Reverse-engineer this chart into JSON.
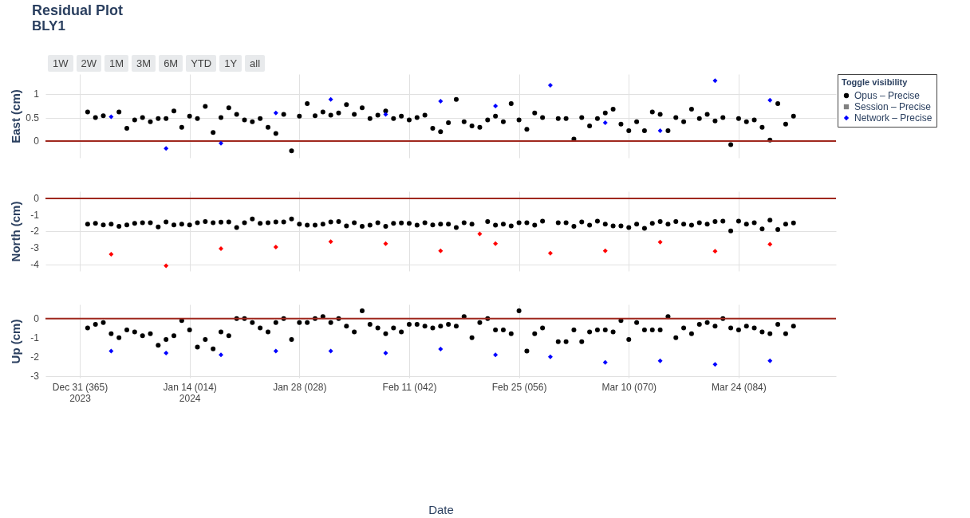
{
  "chart_data": [
    {
      "type": "scatter",
      "title": "Residual Plot",
      "subtitle": "BLY1",
      "ylabel": "East (cm)",
      "legend_title": "Toggle visibility",
      "legend": "top right",
      "grid": true,
      "tick_labels": "y",
      "annotations": [
        "1W",
        "2W",
        "1M",
        "3M",
        "6M",
        "YTD",
        "1Y",
        "all"
      ],
      "xlim": [
        "2023-12-26T15:00",
        "2024-04-05T10:00"
      ],
      "xticks": [
        {
          "value": "2023-12-31",
          "label": null
        },
        {
          "value": "2024-01-14",
          "label": null
        },
        {
          "value": "2024-01-28",
          "label": null
        },
        {
          "value": "2024-02-11",
          "label": null
        },
        {
          "value": "2024-02-25",
          "label": null
        },
        {
          "value": "2024-03-10",
          "label": null
        },
        {
          "value": "2024-03-24",
          "label": null
        }
      ],
      "ylim": [
        -0.36,
        1.43
      ],
      "yticks": [
        0,
        0.5,
        1
      ],
      "ref_lines": [
        {
          "axis": "y",
          "value": 0,
          "color": "#a0281e"
        }
      ],
      "x": [
        "2024-01-01",
        "2024-01-02",
        "2024-01-03",
        "2024-01-04",
        "2024-01-05",
        "2024-01-06",
        "2024-01-07",
        "2024-01-08",
        "2024-01-09",
        "2024-01-10",
        "2024-01-11",
        "2024-01-12",
        "2024-01-13",
        "2024-01-14",
        "2024-01-15",
        "2024-01-16",
        "2024-01-17",
        "2024-01-18",
        "2024-01-19",
        "2024-01-20",
        "2024-01-21",
        "2024-01-22",
        "2024-01-23",
        "2024-01-24",
        "2024-01-25",
        "2024-01-26",
        "2024-01-27",
        "2024-01-28",
        "2024-01-29",
        "2024-01-30",
        "2024-01-31",
        "2024-02-01",
        "2024-02-02",
        "2024-02-03",
        "2024-02-04",
        "2024-02-05",
        "2024-02-06",
        "2024-02-07",
        "2024-02-08",
        "2024-02-09",
        "2024-02-10",
        "2024-02-11",
        "2024-02-12",
        "2024-02-13",
        "2024-02-14",
        "2024-02-15",
        "2024-02-16",
        "2024-02-17",
        "2024-02-18",
        "2024-02-19",
        "2024-02-20",
        "2024-02-21",
        "2024-02-22",
        "2024-02-23",
        "2024-02-24",
        "2024-02-25",
        "2024-02-26",
        "2024-02-27",
        "2024-02-28",
        "2024-02-29",
        "2024-03-01",
        "2024-03-02",
        "2024-03-03",
        "2024-03-04",
        "2024-03-05",
        "2024-03-06",
        "2024-03-07",
        "2024-03-08",
        "2024-03-09",
        "2024-03-10",
        "2024-03-11",
        "2024-03-12",
        "2024-03-13",
        "2024-03-14",
        "2024-03-15",
        "2024-03-16",
        "2024-03-17",
        "2024-03-18",
        "2024-03-19",
        "2024-03-20",
        "2024-03-21",
        "2024-03-22",
        "2024-03-23",
        "2024-03-24",
        "2024-03-25",
        "2024-03-26",
        "2024-03-27",
        "2024-03-28",
        "2024-03-29",
        "2024-03-30",
        "2024-03-31"
      ],
      "series": [
        {
          "name": "Opus – Precise",
          "color": "#000000",
          "marker": "circle",
          "values": [
            0.62,
            0.5,
            0.54,
            null,
            0.62,
            0.27,
            0.45,
            0.5,
            0.41,
            0.48,
            0.48,
            0.64,
            0.29,
            0.53,
            0.48,
            0.74,
            0.18,
            0.5,
            0.71,
            0.57,
            0.45,
            0.41,
            0.48,
            0.29,
            0.16,
            0.57,
            -0.21,
            0.53,
            0.8,
            0.54,
            0.62,
            0.55,
            0.6,
            0.78,
            0.57,
            0.71,
            0.48,
            0.55,
            0.64,
            0.48,
            0.53,
            0.45,
            0.5,
            0.55,
            0.27,
            0.2,
            0.39,
            0.89,
            0.41,
            0.32,
            0.29,
            0.45,
            0.53,
            0.41,
            0.8,
            0.45,
            0.25,
            0.6,
            0.5,
            null,
            0.48,
            0.48,
            0.04,
            0.5,
            0.32,
            0.48,
            0.6,
            0.68,
            0.36,
            0.22,
            0.41,
            0.22,
            0.62,
            0.57,
            0.22,
            0.5,
            0.41,
            0.68,
            0.48,
            0.57,
            0.43,
            0.5,
            -0.08,
            0.48,
            0.41,
            0.45,
            0.29,
            0.02,
            0.8,
            0.36,
            0.53
          ]
        },
        {
          "name": "Session – Precise",
          "color": "#808080",
          "marker": "square",
          "values": [
            null,
            null,
            null,
            null,
            null,
            null,
            null,
            null,
            null,
            null,
            null,
            null,
            null,
            null,
            null,
            null,
            null,
            null,
            null,
            null,
            null,
            null,
            null,
            null,
            null,
            null,
            null,
            null,
            null,
            null,
            null,
            null,
            null,
            null,
            null,
            null,
            null,
            null,
            null,
            null,
            null,
            null,
            null,
            null,
            null,
            null,
            null,
            null,
            null,
            null,
            null,
            null,
            null,
            null,
            null,
            null,
            null,
            null,
            null,
            null,
            null,
            null,
            null,
            null,
            null,
            null,
            null,
            null,
            null,
            null,
            null,
            null,
            null,
            null,
            null,
            null,
            null,
            null,
            null,
            null,
            null,
            null,
            null,
            null,
            null,
            null,
            null,
            null,
            null,
            null,
            null
          ]
        },
        {
          "name": "Network – Precise",
          "color": "#0000ff",
          "marker": "diamond",
          "x": [
            "2024-01-04",
            "2024-01-11",
            "2024-01-18",
            "2024-01-25",
            "2024-02-01",
            "2024-02-08",
            "2024-02-15",
            "2024-02-22",
            "2024-02-29",
            "2024-03-07",
            "2024-03-14",
            "2024-03-21",
            "2024-03-28"
          ],
          "values": [
            0.52,
            -0.16,
            -0.05,
            0.6,
            0.89,
            0.57,
            0.85,
            0.75,
            1.19,
            0.39,
            0.22,
            1.29,
            0.87
          ]
        }
      ]
    },
    {
      "type": "scatter",
      "ylabel": "North (cm)",
      "grid": true,
      "tick_labels": "y",
      "xlim": [
        "2023-12-26T15:00",
        "2024-04-05T10:00"
      ],
      "xticks": [
        {
          "value": "2023-12-31",
          "label": null
        },
        {
          "value": "2024-01-14",
          "label": null
        },
        {
          "value": "2024-01-28",
          "label": null
        },
        {
          "value": "2024-02-11",
          "label": null
        },
        {
          "value": "2024-02-25",
          "label": null
        },
        {
          "value": "2024-03-10",
          "label": null
        },
        {
          "value": "2024-03-24",
          "label": null
        }
      ],
      "ylim": [
        -4.4,
        0.43
      ],
      "yticks": [
        0,
        -1,
        -2,
        -3,
        -4
      ],
      "ref_lines": [
        {
          "axis": "y",
          "value": 0,
          "color": "#a0281e"
        }
      ],
      "x": [
        "2024-01-01",
        "2024-01-02",
        "2024-01-03",
        "2024-01-04",
        "2024-01-05",
        "2024-01-06",
        "2024-01-07",
        "2024-01-08",
        "2024-01-09",
        "2024-01-10",
        "2024-01-11",
        "2024-01-12",
        "2024-01-13",
        "2024-01-14",
        "2024-01-15",
        "2024-01-16",
        "2024-01-17",
        "2024-01-18",
        "2024-01-19",
        "2024-01-20",
        "2024-01-21",
        "2024-01-22",
        "2024-01-23",
        "2024-01-24",
        "2024-01-25",
        "2024-01-26",
        "2024-01-27",
        "2024-01-28",
        "2024-01-29",
        "2024-01-30",
        "2024-01-31",
        "2024-02-01",
        "2024-02-02",
        "2024-02-03",
        "2024-02-04",
        "2024-02-05",
        "2024-02-06",
        "2024-02-07",
        "2024-02-08",
        "2024-02-09",
        "2024-02-10",
        "2024-02-11",
        "2024-02-12",
        "2024-02-13",
        "2024-02-14",
        "2024-02-15",
        "2024-02-16",
        "2024-02-17",
        "2024-02-18",
        "2024-02-19",
        "2024-02-20",
        "2024-02-21",
        "2024-02-22",
        "2024-02-23",
        "2024-02-24",
        "2024-02-25",
        "2024-02-26",
        "2024-02-27",
        "2024-02-28",
        "2024-02-29",
        "2024-03-01",
        "2024-03-02",
        "2024-03-03",
        "2024-03-04",
        "2024-03-05",
        "2024-03-06",
        "2024-03-07",
        "2024-03-08",
        "2024-03-09",
        "2024-03-10",
        "2024-03-11",
        "2024-03-12",
        "2024-03-13",
        "2024-03-14",
        "2024-03-15",
        "2024-03-16",
        "2024-03-17",
        "2024-03-18",
        "2024-03-19",
        "2024-03-20",
        "2024-03-21",
        "2024-03-22",
        "2024-03-23",
        "2024-03-24",
        "2024-03-25",
        "2024-03-26",
        "2024-03-27",
        "2024-03-28",
        "2024-03-29",
        "2024-03-30",
        "2024-03-31"
      ],
      "series": [
        {
          "color": "#000000",
          "marker": "circle",
          "values": [
            -1.56,
            -1.52,
            -1.61,
            -1.56,
            -1.69,
            -1.61,
            -1.52,
            -1.48,
            -1.48,
            -1.73,
            -1.43,
            -1.61,
            -1.56,
            -1.61,
            -1.48,
            -1.41,
            -1.48,
            -1.44,
            -1.43,
            -1.77,
            -1.48,
            -1.25,
            -1.52,
            -1.48,
            -1.43,
            -1.43,
            -1.25,
            -1.56,
            -1.62,
            -1.62,
            -1.56,
            -1.43,
            -1.41,
            -1.67,
            -1.48,
            -1.7,
            -1.62,
            -1.48,
            -1.7,
            -1.52,
            -1.49,
            -1.52,
            -1.62,
            -1.48,
            -1.61,
            -1.56,
            -1.56,
            -1.77,
            -1.48,
            -1.56,
            null,
            -1.41,
            -1.62,
            -1.56,
            -1.67,
            -1.48,
            -1.48,
            -1.62,
            -1.38,
            null,
            -1.48,
            -1.48,
            -1.69,
            -1.43,
            -1.62,
            -1.38,
            -1.56,
            -1.67,
            -1.67,
            -1.77,
            -1.56,
            -1.81,
            -1.52,
            -1.41,
            -1.56,
            -1.41,
            -1.56,
            -1.62,
            -1.48,
            -1.56,
            -1.41,
            -1.38,
            -1.97,
            -1.38,
            -1.56,
            -1.48,
            -1.85,
            -1.32,
            -1.89,
            -1.56,
            -1.49
          ]
        },
        {
          "color": "#ff0000",
          "marker": "diamond",
          "x": [
            "2024-01-04",
            "2024-01-11",
            "2024-01-18",
            "2024-01-25",
            "2024-02-01",
            "2024-02-08",
            "2024-02-15",
            "2024-02-20",
            "2024-02-22",
            "2024-02-29",
            "2024-03-07",
            "2024-03-14",
            "2024-03-21",
            "2024-03-28"
          ],
          "values": [
            -3.39,
            -4.09,
            -3.05,
            -2.95,
            -2.63,
            -2.74,
            -3.18,
            -2.15,
            -2.74,
            -3.32,
            -3.18,
            -2.65,
            -3.21,
            -2.78
          ]
        }
      ]
    },
    {
      "type": "scatter",
      "ylabel": "Up (cm)",
      "xlabel": "Date",
      "grid": true,
      "xlim": [
        "2023-12-26T15:00",
        "2024-04-05T10:00"
      ],
      "xticks": [
        {
          "value": "2023-12-31",
          "label": "Dec 31 (365)\n2023"
        },
        {
          "value": "2024-01-14",
          "label": "Jan 14 (014)\n2024"
        },
        {
          "value": "2024-01-28",
          "label": "Jan 28 (028)"
        },
        {
          "value": "2024-02-11",
          "label": "Feb 11 (042)"
        },
        {
          "value": "2024-02-25",
          "label": "Feb 25 (056)"
        },
        {
          "value": "2024-03-10",
          "label": "Mar 10 (070)"
        },
        {
          "value": "2024-03-24",
          "label": "Mar 24 (084)"
        }
      ],
      "ylim": [
        -3.1,
        0.74
      ],
      "yticks": [
        0,
        -1,
        -2,
        -3
      ],
      "ref_lines": [
        {
          "axis": "y",
          "value": 0,
          "color": "#a0281e"
        }
      ],
      "x": [
        "2024-01-01",
        "2024-01-02",
        "2024-01-03",
        "2024-01-04",
        "2024-01-05",
        "2024-01-06",
        "2024-01-07",
        "2024-01-08",
        "2024-01-09",
        "2024-01-10",
        "2024-01-11",
        "2024-01-12",
        "2024-01-13",
        "2024-01-14",
        "2024-01-15",
        "2024-01-16",
        "2024-01-17",
        "2024-01-18",
        "2024-01-19",
        "2024-01-20",
        "2024-01-21",
        "2024-01-22",
        "2024-01-23",
        "2024-01-24",
        "2024-01-25",
        "2024-01-26",
        "2024-01-27",
        "2024-01-28",
        "2024-01-29",
        "2024-01-30",
        "2024-01-31",
        "2024-02-01",
        "2024-02-02",
        "2024-02-03",
        "2024-02-04",
        "2024-02-05",
        "2024-02-06",
        "2024-02-07",
        "2024-02-08",
        "2024-02-09",
        "2024-02-10",
        "2024-02-11",
        "2024-02-12",
        "2024-02-13",
        "2024-02-14",
        "2024-02-15",
        "2024-02-16",
        "2024-02-17",
        "2024-02-18",
        "2024-02-19",
        "2024-02-20",
        "2024-02-21",
        "2024-02-22",
        "2024-02-23",
        "2024-02-24",
        "2024-02-25",
        "2024-02-26",
        "2024-02-27",
        "2024-02-28",
        "2024-02-29",
        "2024-03-01",
        "2024-03-02",
        "2024-03-03",
        "2024-03-04",
        "2024-03-05",
        "2024-03-06",
        "2024-03-07",
        "2024-03-08",
        "2024-03-09",
        "2024-03-10",
        "2024-03-11",
        "2024-03-12",
        "2024-03-13",
        "2024-03-14",
        "2024-03-15",
        "2024-03-16",
        "2024-03-17",
        "2024-03-18",
        "2024-03-19",
        "2024-03-20",
        "2024-03-21",
        "2024-03-22",
        "2024-03-23",
        "2024-03-24",
        "2024-03-25",
        "2024-03-26",
        "2024-03-27",
        "2024-03-28",
        "2024-03-29",
        "2024-03-30",
        "2024-03-31"
      ],
      "series": [
        {
          "color": "#000000",
          "marker": "circle",
          "values": [
            -0.49,
            -0.3,
            -0.21,
            -0.79,
            -1.0,
            -0.6,
            -0.7,
            -0.9,
            -0.79,
            -1.4,
            -1.1,
            -0.9,
            -0.1,
            -0.6,
            -1.49,
            -1.1,
            -1.59,
            -0.7,
            -0.9,
            0.0,
            0.0,
            -0.21,
            -0.49,
            -0.7,
            -0.21,
            0.0,
            -1.1,
            -0.21,
            -0.21,
            0.0,
            0.1,
            -0.21,
            0.0,
            -0.4,
            -0.7,
            0.41,
            -0.3,
            -0.49,
            -0.79,
            -0.49,
            -0.7,
            -0.3,
            -0.3,
            -0.4,
            -0.49,
            -0.4,
            -0.3,
            -0.4,
            0.1,
            -1.0,
            -0.21,
            0.0,
            -0.6,
            -0.6,
            -0.79,
            0.41,
            -1.7,
            -0.79,
            -0.49,
            null,
            -1.21,
            -1.21,
            -0.6,
            -1.21,
            -0.7,
            -0.6,
            -0.6,
            -0.7,
            -0.1,
            -1.1,
            -0.21,
            -0.6,
            -0.6,
            -0.6,
            0.1,
            -1.0,
            -0.49,
            -0.79,
            -0.3,
            -0.21,
            -0.4,
            0.0,
            -0.49,
            -0.6,
            -0.4,
            -0.49,
            -0.7,
            -0.79,
            -0.3,
            -0.79,
            -0.4
          ]
        },
        {
          "color": "#0000ff",
          "marker": "diamond",
          "x": [
            "2024-01-04",
            "2024-01-11",
            "2024-01-18",
            "2024-01-25",
            "2024-02-01",
            "2024-02-08",
            "2024-02-15",
            "2024-02-22",
            "2024-02-29",
            "2024-03-07",
            "2024-03-14",
            "2024-03-21",
            "2024-03-28"
          ],
          "values": [
            -1.7,
            -1.81,
            -1.9,
            -1.7,
            -1.7,
            -1.81,
            -1.6,
            -1.9,
            -2.0,
            -2.3,
            -2.21,
            -2.4,
            -2.21
          ]
        }
      ]
    }
  ]
}
